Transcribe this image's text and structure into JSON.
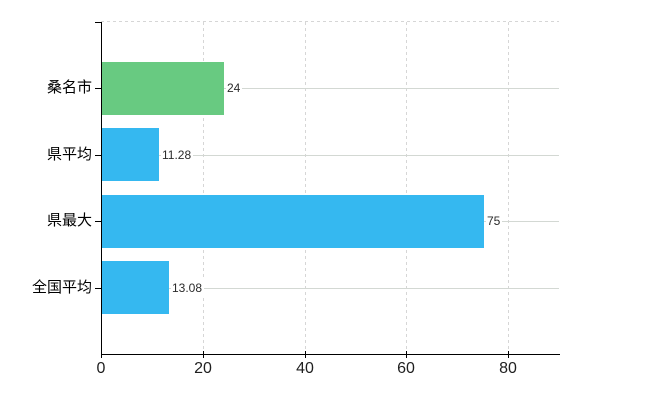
{
  "chart_data": {
    "type": "bar",
    "orientation": "horizontal",
    "title": "",
    "categories": [
      "桑名市",
      "県平均",
      "県最大",
      "全国平均"
    ],
    "values": [
      24,
      11.28,
      75,
      13.08
    ],
    "value_labels": [
      "24",
      "11.28",
      "75",
      "13.08"
    ],
    "bar_colors": [
      "#68ca81",
      "#35b8f0",
      "#35b8f0",
      "#35b8f0"
    ],
    "x_axis": {
      "min": 0,
      "max": 90,
      "tick_values": [
        0,
        20,
        40,
        60,
        80
      ],
      "tick_labels": [
        "0",
        "20",
        "40",
        "60",
        "80"
      ]
    },
    "grid": {
      "vertical": "dashed",
      "horizontal": "solid",
      "top_border": "dashed"
    },
    "legend": "none"
  },
  "colors": {
    "background": "#ffffff",
    "axis_line": "#000000",
    "horizontal_gridline": "#d3d8d3",
    "vertical_gridline": "#d6d6d6",
    "top_border": "#d6d6d6",
    "value_label_text": "#2b2b2b",
    "x_tick_label_text": "#1f1f1f",
    "category_label_text": "#000000"
  }
}
